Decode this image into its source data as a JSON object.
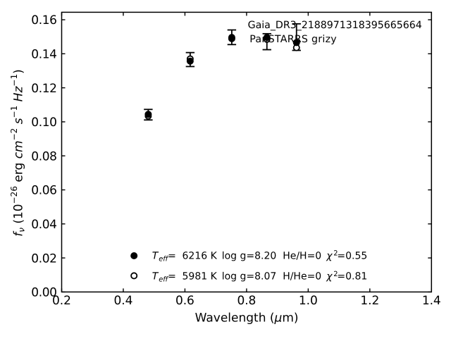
{
  "chart_data": {
    "type": "scatter",
    "title": "",
    "xlabel_parts": [
      {
        "t": "Wavelength ("
      },
      {
        "t": "μ",
        "i": true
      },
      {
        "t": "m)"
      }
    ],
    "ylabel_parts": [
      {
        "t": "f",
        "i": true
      },
      {
        "t": "ν",
        "i": true,
        "sub": true
      },
      {
        "t": " (10"
      },
      {
        "t": "−26",
        "sup": true
      },
      {
        "t": " erg "
      },
      {
        "t": "cm",
        "i": true
      },
      {
        "t": "−2",
        "sup": true
      },
      {
        "t": " "
      },
      {
        "t": "s",
        "i": true
      },
      {
        "t": "−1",
        "sup": true
      },
      {
        "t": " "
      },
      {
        "t": "Hz",
        "i": true
      },
      {
        "t": "−1",
        "sup": true
      },
      {
        "t": ")"
      }
    ],
    "xlabel": "Wavelength (μm)",
    "ylabel": "f_ν (10^−26 erg cm^−2 s^−1 Hz^−1)",
    "xlim": [
      0.2,
      1.4
    ],
    "ylim": [
      0,
      0.1644
    ],
    "x_ticks": [
      0.2,
      0.4,
      0.6,
      0.8,
      1.0,
      1.2,
      1.4
    ],
    "x_tick_labels": [
      "0.2",
      "0.4",
      "0.6",
      "0.8",
      "1.0",
      "1.2",
      "1.4"
    ],
    "y_ticks": [
      0.0,
      0.02,
      0.04,
      0.06,
      0.08,
      0.1,
      0.12,
      0.14,
      0.16
    ],
    "y_tick_labels": [
      "0.00",
      "0.02",
      "0.04",
      "0.06",
      "0.08",
      "0.10",
      "0.12",
      "0.14",
      "0.16"
    ],
    "grid": false,
    "x": [
      0.481,
      0.617,
      0.752,
      0.866,
      0.962
    ],
    "series": [
      {
        "name": "observed PanSTARRS grizy photometry",
        "marker": "errorbar",
        "values": [
          0.1042,
          0.1366,
          0.1497,
          0.1471,
          0.1498
        ],
        "errors": [
          0.0031,
          0.0041,
          0.0043,
          0.0047,
          0.0078
        ]
      },
      {
        "name": "model Teff=6216 K He/H=0",
        "marker": "filled-circle",
        "values": [
          0.1044,
          0.1357,
          0.1489,
          0.1496,
          0.1466
        ]
      },
      {
        "name": "model Teff=5981 K H/He=0",
        "marker": "open-circle",
        "values": [
          0.1034,
          0.137,
          0.1496,
          0.1485,
          0.1436
        ]
      }
    ],
    "annotations": [
      {
        "text": "Gaia_DR3_2188971318395665664"
      },
      {
        "text": "PanSTARRS grizy"
      }
    ],
    "legend": [
      {
        "marker": "filled-circle",
        "teff_label": "T",
        "teff_sub": "eff",
        "eq": "=",
        "teff_value": "6216 K",
        "logg": "log g=8.20",
        "ratio": "He/H=0",
        "chi_label": "χ",
        "chi_sup": "2",
        "chi_value": "=0.55"
      },
      {
        "marker": "open-circle",
        "teff_label": "T",
        "teff_sub": "eff",
        "eq": "=",
        "teff_value": "5981 K",
        "logg": "log g=8.07",
        "ratio": "H/He=0",
        "chi_label": "χ",
        "chi_sup": "2",
        "chi_value": "=0.81"
      }
    ],
    "legend_position": "lower center",
    "colors": {
      "foreground": "#000000",
      "background": "#ffffff"
    }
  }
}
